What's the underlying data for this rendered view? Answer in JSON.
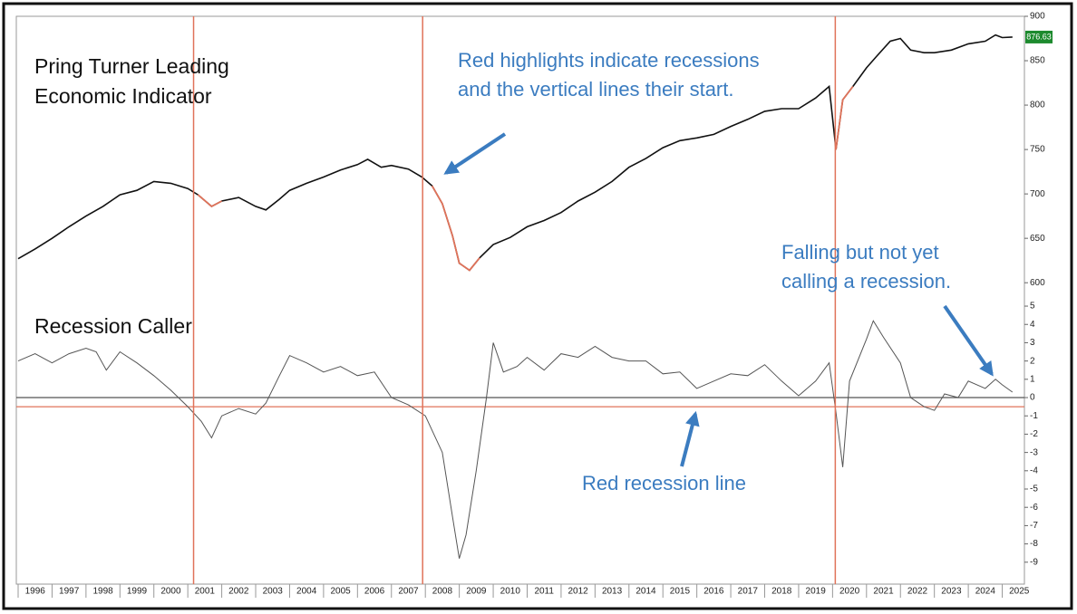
{
  "recession_starts": [
    2001.17,
    2007.92,
    2020.08
  ],
  "recession_color": "#e0735a",
  "annotations": [
    [
      "Red highlights indicate recessions",
      "and the vertical lines their start."
    ],
    [
      "Falling but not yet",
      "calling a recession."
    ],
    [
      "Red recession line"
    ]
  ],
  "chart_data": [
    {
      "type": "line",
      "title": [
        "Pring Turner Leading",
        "Economic Indicator"
      ],
      "color": "#111111",
      "highlight_color": "#e0735a",
      "recessions": [
        [
          2001.17,
          2001.9
        ],
        [
          2007.92,
          2009.5
        ],
        [
          2020.08,
          2020.3
        ]
      ],
      "x": [
        1996.0,
        1996.5,
        1997.0,
        1997.5,
        1998.0,
        1998.5,
        1999.0,
        1999.5,
        2000.0,
        2000.5,
        2001.0,
        2001.3,
        2001.7,
        2002.0,
        2002.5,
        2003.0,
        2003.3,
        2003.7,
        2004.0,
        2004.5,
        2005.0,
        2005.5,
        2006.0,
        2006.3,
        2006.7,
        2007.0,
        2007.5,
        2007.9,
        2008.2,
        2008.5,
        2008.8,
        2009.0,
        2009.3,
        2009.6,
        2010.0,
        2010.5,
        2011.0,
        2011.5,
        2012.0,
        2012.5,
        2013.0,
        2013.5,
        2014.0,
        2014.5,
        2015.0,
        2015.5,
        2016.0,
        2016.5,
        2017.0,
        2017.5,
        2018.0,
        2018.5,
        2019.0,
        2019.5,
        2019.9,
        2020.1,
        2020.3,
        2020.6,
        2021.0,
        2021.3,
        2021.7,
        2022.0,
        2022.3,
        2022.7,
        2023.0,
        2023.5,
        2024.0,
        2024.5,
        2024.8,
        2025.0,
        2025.3
      ],
      "values": [
        627,
        638,
        650,
        663,
        675,
        686,
        699,
        704,
        714,
        712,
        706,
        699,
        686,
        692,
        696,
        686,
        682,
        694,
        704,
        712,
        719,
        727,
        733,
        739,
        730,
        732,
        728,
        719,
        709,
        689,
        653,
        622,
        614,
        628,
        643,
        651,
        663,
        670,
        679,
        692,
        702,
        714,
        730,
        740,
        752,
        760,
        763,
        767,
        776,
        784,
        793,
        796,
        796,
        808,
        821,
        750,
        806,
        821,
        842,
        855,
        872,
        875,
        862,
        859,
        859,
        862,
        869,
        872,
        879,
        876,
        876.63
      ],
      "xlim": [
        1996,
        2025.6
      ],
      "ylim": [
        590,
        900
      ],
      "yticks": [
        600,
        650,
        700,
        750,
        800,
        850,
        900
      ]
    },
    {
      "type": "line",
      "title": [
        "Recession Caller"
      ],
      "color": "#555555",
      "reference_lines": [
        {
          "value": 0,
          "color": "#555555"
        },
        {
          "value": -0.5,
          "color": "#e0735a"
        }
      ],
      "x": [
        1996.0,
        1996.5,
        1997.0,
        1997.5,
        1998.0,
        1998.3,
        1998.6,
        1999.0,
        1999.5,
        2000.0,
        2000.5,
        2001.0,
        2001.4,
        2001.7,
        2002.0,
        2002.5,
        2003.0,
        2003.3,
        2003.7,
        2004.0,
        2004.5,
        2005.0,
        2005.5,
        2006.0,
        2006.5,
        2007.0,
        2007.5,
        2008.0,
        2008.5,
        2008.8,
        2009.0,
        2009.2,
        2009.5,
        2009.8,
        2010.0,
        2010.3,
        2010.7,
        2011.0,
        2011.5,
        2012.0,
        2012.5,
        2013.0,
        2013.5,
        2014.0,
        2014.5,
        2015.0,
        2015.5,
        2016.0,
        2016.5,
        2017.0,
        2017.5,
        2018.0,
        2018.5,
        2019.0,
        2019.5,
        2019.9,
        2020.1,
        2020.3,
        2020.5,
        2021.0,
        2021.2,
        2021.5,
        2022.0,
        2022.3,
        2022.7,
        2023.0,
        2023.3,
        2023.7,
        2024.0,
        2024.5,
        2024.8,
        2025.0,
        2025.3
      ],
      "values": [
        2.0,
        2.4,
        1.9,
        2.4,
        2.7,
        2.5,
        1.5,
        2.5,
        1.9,
        1.2,
        0.4,
        -0.5,
        -1.3,
        -2.2,
        -1.0,
        -0.6,
        -0.9,
        -0.3,
        1.2,
        2.3,
        1.9,
        1.4,
        1.7,
        1.2,
        1.4,
        0,
        -0.4,
        -1.0,
        -3.0,
        -6.5,
        -8.8,
        -7.5,
        -4.0,
        0,
        3.0,
        1.4,
        1.7,
        2.2,
        1.5,
        2.4,
        2.2,
        2.8,
        2.2,
        2.0,
        2.0,
        1.3,
        1.4,
        0.5,
        0.9,
        1.3,
        1.2,
        1.8,
        0.9,
        0.1,
        0.9,
        1.9,
        -0.8,
        -3.8,
        0.9,
        3.2,
        4.2,
        3.3,
        1.9,
        0,
        -0.5,
        -0.7,
        0.2,
        0,
        0.9,
        0.5,
        1.0,
        0.7,
        0.3
      ],
      "xlim": [
        1996,
        2025.6
      ],
      "ylim": [
        -10,
        5.2
      ],
      "yticks": [
        -9,
        -8,
        -7,
        -6,
        -5,
        -4,
        -3,
        -2,
        -1,
        0,
        1,
        2,
        3,
        4,
        5
      ],
      "xticks": [
        1996,
        1997,
        1998,
        1999,
        2000,
        2001,
        2002,
        2003,
        2004,
        2005,
        2006,
        2007,
        2008,
        2009,
        2010,
        2011,
        2012,
        2013,
        2014,
        2015,
        2016,
        2017,
        2018,
        2019,
        2020,
        2021,
        2022,
        2023,
        2024,
        2025
      ]
    }
  ]
}
